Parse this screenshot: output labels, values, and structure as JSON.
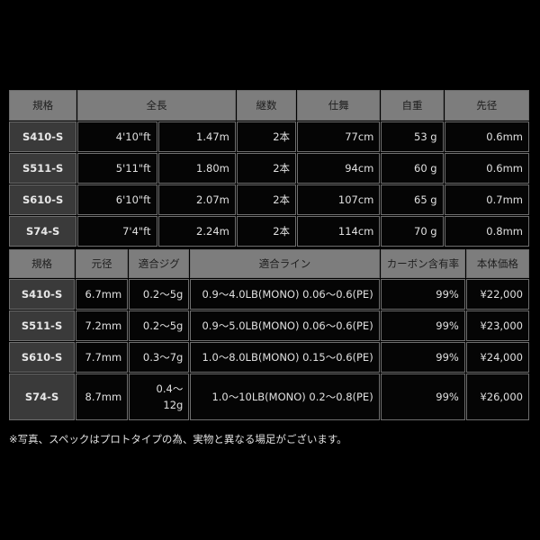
{
  "table1": {
    "headers": [
      "規格",
      "全長",
      "継数",
      "仕舞",
      "自重",
      "先径"
    ],
    "rows": [
      {
        "model": "S410-S",
        "length_ft": "4'10\"ft",
        "length_m": "1.47m",
        "pieces": "2本",
        "closed": "77cm",
        "weight": "53 g",
        "tip": "0.6mm"
      },
      {
        "model": "S511-S",
        "length_ft": "5'11\"ft",
        "length_m": "1.80m",
        "pieces": "2本",
        "closed": "94cm",
        "weight": "60 g",
        "tip": "0.6mm"
      },
      {
        "model": "S610-S",
        "length_ft": "6'10\"ft",
        "length_m": "2.07m",
        "pieces": "2本",
        "closed": "107cm",
        "weight": "65 g",
        "tip": "0.7mm"
      },
      {
        "model": "S74-S",
        "length_ft": "7'4\"ft",
        "length_m": "2.24m",
        "pieces": "2本",
        "closed": "114cm",
        "weight": "70 g",
        "tip": "0.8mm"
      }
    ]
  },
  "table2": {
    "headers": [
      "規格",
      "元径",
      "適合ジグ",
      "適合ライン",
      "カーボン含有率",
      "本体価格"
    ],
    "rows": [
      {
        "model": "S410-S",
        "butt": "6.7mm",
        "jig": "0.2～5g",
        "line": "0.9～4.0LB(MONO) 0.06～0.6(PE)",
        "carbon": "99%",
        "price": "¥22,000"
      },
      {
        "model": "S511-S",
        "butt": "7.2mm",
        "jig": "0.2～5g",
        "line": "0.9～5.0LB(MONO) 0.06～0.6(PE)",
        "carbon": "99%",
        "price": "¥23,000"
      },
      {
        "model": "S610-S",
        "butt": "7.7mm",
        "jig": "0.3～7g",
        "line": "1.0～8.0LB(MONO) 0.15～0.6(PE)",
        "carbon": "99%",
        "price": "¥24,000"
      },
      {
        "model": "S74-S",
        "butt": "8.7mm",
        "jig": "0.4～ 12g",
        "line": "1.0～10LB(MONO) 0.2～0.8(PE)",
        "carbon": "99%",
        "price": "¥26,000"
      }
    ]
  },
  "footnote": "※写真、スペックはプロトタイプの為、実物と異なる場足がございます。"
}
